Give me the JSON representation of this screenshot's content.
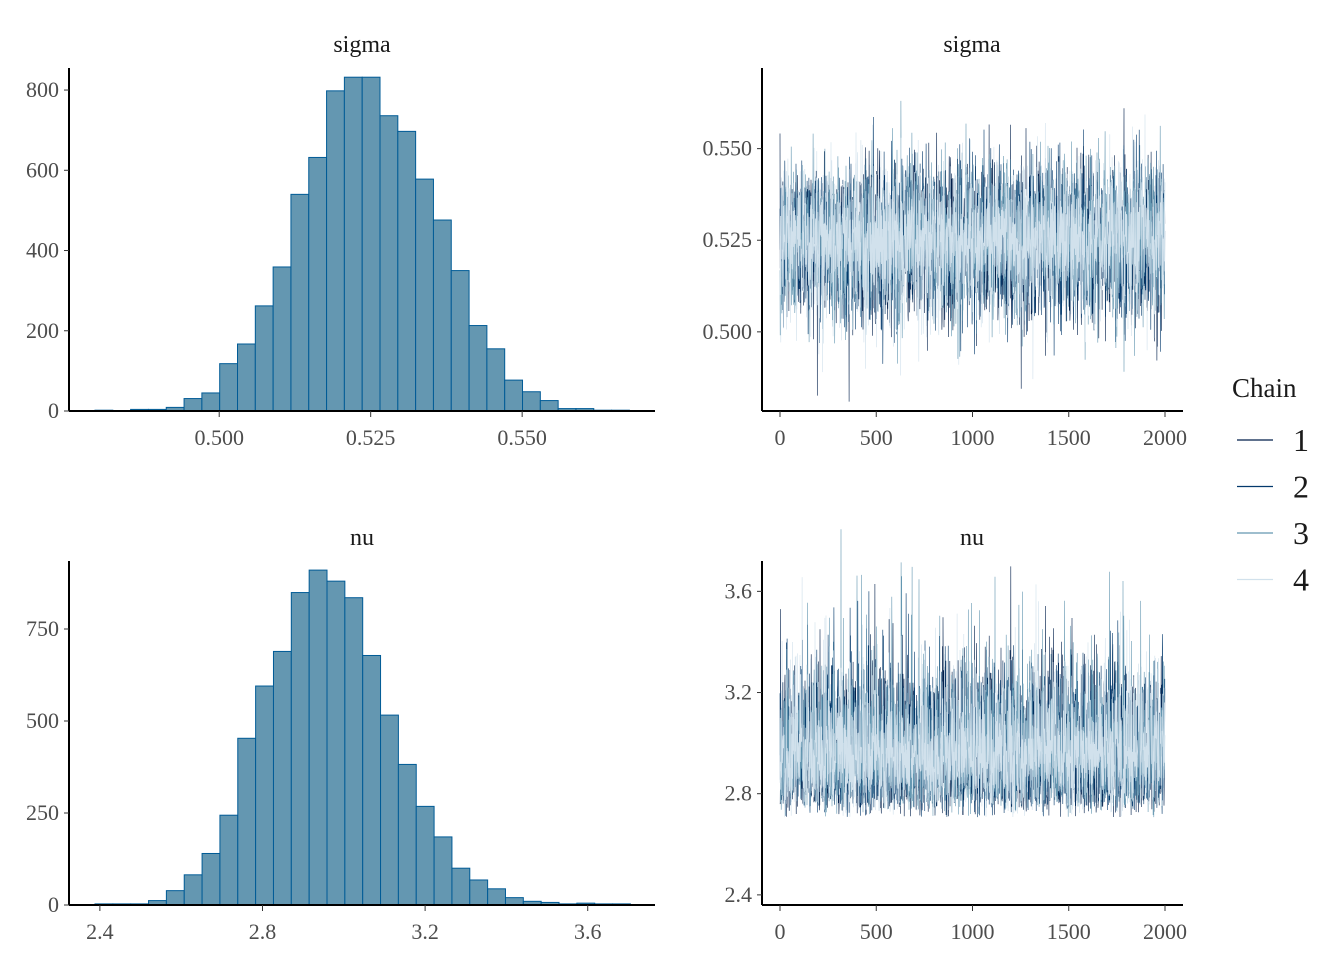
{
  "colors": {
    "hist_fill": "#6497b1",
    "hist_outline": "#005b96",
    "chains": [
      "#011f4b",
      "#03396c",
      "#6497b1",
      "#d1e1ec"
    ]
  },
  "legend": {
    "title": "Chain",
    "items": [
      "1",
      "2",
      "3",
      "4"
    ]
  },
  "chart_data": [
    {
      "type": "bar",
      "subtype": "histogram",
      "title": "sigma",
      "bin_start": 0.4795,
      "bin_width": 0.00294,
      "values": [
        2,
        0,
        4,
        4,
        9,
        31,
        45,
        118,
        167,
        262,
        359,
        540,
        632,
        798,
        832,
        832,
        736,
        697,
        578,
        476,
        350,
        213,
        155,
        77,
        48,
        26,
        6,
        6,
        2,
        2
      ],
      "xlim": [
        0.4795,
        0.5678
      ],
      "ylim": [
        0,
        835
      ],
      "xticks": [
        0.5,
        0.525,
        0.55
      ],
      "xtick_labels": [
        "0.500",
        "0.525",
        "0.550"
      ],
      "yticks": [
        0,
        200,
        400,
        600,
        800
      ],
      "ytick_labels": [
        "0",
        "200",
        "400",
        "600",
        "800"
      ]
    },
    {
      "type": "line",
      "subtype": "trace",
      "title": "sigma",
      "iterations": 2000,
      "chains": 4,
      "mean": 0.525,
      "sd": 0.0105,
      "xlim": [
        0,
        2000
      ],
      "ylim": [
        0.4784,
        0.572
      ],
      "xticks": [
        0,
        500,
        1000,
        1500,
        2000
      ],
      "xtick_labels": [
        "0",
        "500",
        "1000",
        "1500",
        "2000"
      ],
      "yticks": [
        0.5,
        0.525,
        0.55
      ],
      "ytick_labels": [
        "0.500",
        "0.525",
        "0.550"
      ]
    },
    {
      "type": "bar",
      "subtype": "histogram",
      "title": "nu",
      "bin_start": 2.388,
      "bin_width": 0.0439,
      "values": [
        3,
        3,
        3,
        12,
        39,
        82,
        140,
        244,
        453,
        595,
        689,
        849,
        910,
        880,
        835,
        678,
        516,
        382,
        268,
        185,
        100,
        68,
        44,
        20,
        10,
        7,
        3,
        5,
        3,
        3
      ],
      "xlim": [
        2.388,
        3.704
      ],
      "ylim": [
        0,
        913
      ],
      "xticks": [
        2.4,
        2.8,
        3.2,
        3.6
      ],
      "xtick_labels": [
        "2.4",
        "2.8",
        "3.2",
        "3.6"
      ],
      "yticks": [
        0,
        250,
        500,
        750
      ],
      "ytick_labels": [
        "0",
        "250",
        "500",
        "750"
      ]
    },
    {
      "type": "line",
      "subtype": "trace",
      "title": "nu",
      "iterations": 2000,
      "chains": 4,
      "mean": 2.98,
      "sd": 0.15,
      "xlim": [
        0,
        2000
      ],
      "ylim": [
        2.36,
        3.72
      ],
      "xticks": [
        0,
        500,
        1000,
        1500,
        2000
      ],
      "xtick_labels": [
        "0",
        "500",
        "1000",
        "1500",
        "2000"
      ],
      "yticks": [
        2.4,
        2.8,
        3.2,
        3.6
      ],
      "ytick_labels": [
        "2.4",
        "2.8",
        "3.2",
        "3.6"
      ]
    }
  ]
}
